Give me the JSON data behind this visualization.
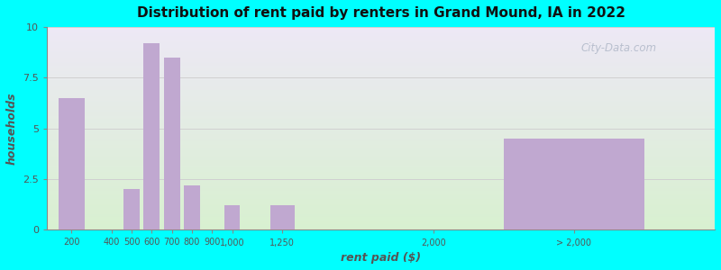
{
  "title": "Distribution of rent paid by renters in Grand Mound, IA in 2022",
  "xlabel": "rent paid ($)",
  "ylabel": "households",
  "bar_color": "#c0a8d0",
  "background_color": "#00ffff",
  "ylim": [
    0,
    10
  ],
  "yticks": [
    0,
    2.5,
    5,
    7.5,
    10
  ],
  "bar_labels": [
    "200",
    "400",
    "500",
    "600",
    "700",
    "800",
    "900",
    "1,000",
    "1,250",
    "2,000",
    "> 2,000"
  ],
  "bar_values": [
    6.5,
    0,
    2.0,
    9.2,
    8.5,
    2.2,
    0,
    1.2,
    1.2,
    0,
    4.5
  ],
  "bar_positions": [
    200,
    400,
    500,
    600,
    700,
    800,
    900,
    1000,
    1250,
    2000,
    2700
  ],
  "bar_widths": [
    130,
    130,
    80,
    80,
    80,
    80,
    80,
    80,
    120,
    130,
    700
  ],
  "xtick_positions": [
    200,
    400,
    500,
    600,
    700,
    800,
    900,
    1000,
    1250,
    2000,
    2700
  ],
  "xlim": [
    80,
    3400
  ],
  "grad_colors": [
    "#d8f0d0",
    "#ede8f5"
  ],
  "watermark": "City-Data.com"
}
